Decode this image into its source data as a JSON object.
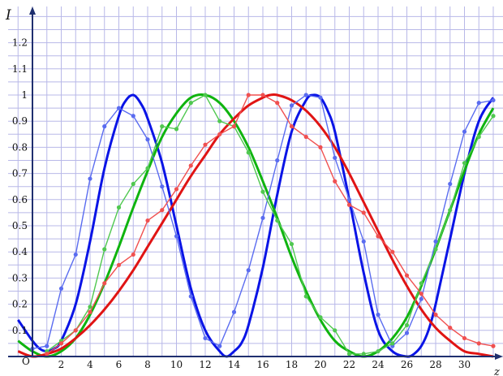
{
  "chart_data": {
    "type": "line",
    "title": "",
    "ylabel": "I",
    "xlabel": "z",
    "origin_label": "O",
    "xlim": [
      -1,
      33
    ],
    "ylim": [
      0,
      1.32
    ],
    "grid": true,
    "legend": "none",
    "grid_color": "#b8b8e8",
    "axis_color": "#1f2f6f",
    "x_ticks": [
      "2",
      "4",
      "6",
      "8",
      "10",
      "12",
      "14",
      "16",
      "18",
      "20",
      "22",
      "24",
      "26",
      "28",
      "30"
    ],
    "y_ticks": [
      "0.1",
      "0.2",
      "0.3",
      "0.4",
      "0.5",
      "0.6",
      "0.7",
      "0.8",
      "0.9",
      "1",
      "1.1",
      "1.2"
    ],
    "series": [
      {
        "color": "#0a14e6",
        "kind": "fit",
        "x": [
          -1,
          0,
          0.5,
          1,
          1.5,
          2,
          3,
          4,
          5,
          6,
          6.5,
          7,
          7.5,
          8,
          9,
          10,
          11,
          12,
          13,
          13.5,
          14,
          14.5,
          15,
          16,
          17,
          18,
          19,
          19.5,
          20,
          20.5,
          21,
          22,
          23,
          24,
          25,
          26,
          26.5,
          27,
          27.5,
          28,
          29,
          30,
          31,
          32
        ],
        "y": [
          0.14,
          0.06,
          0.03,
          0.02,
          0.03,
          0.06,
          0.2,
          0.44,
          0.72,
          0.92,
          0.98,
          1.0,
          0.97,
          0.91,
          0.74,
          0.5,
          0.26,
          0.1,
          0.02,
          0.0,
          0.02,
          0.05,
          0.12,
          0.34,
          0.62,
          0.86,
          0.98,
          1.0,
          0.99,
          0.94,
          0.86,
          0.6,
          0.32,
          0.1,
          0.02,
          0.0,
          0.01,
          0.04,
          0.1,
          0.2,
          0.45,
          0.7,
          0.9,
          0.99
        ]
      },
      {
        "color": "#5a6cf0",
        "kind": "measured",
        "x": [
          0,
          1,
          2,
          3,
          4,
          5,
          6,
          7,
          8,
          9,
          10,
          11,
          12,
          13,
          14,
          15,
          16,
          17,
          18,
          19,
          20,
          21,
          22,
          23,
          24,
          25,
          26,
          27,
          28,
          29,
          30,
          31,
          32
        ],
        "y": [
          0.03,
          0.04,
          0.26,
          0.39,
          0.68,
          0.88,
          0.95,
          0.92,
          0.83,
          0.65,
          0.46,
          0.23,
          0.07,
          0.04,
          0.17,
          0.33,
          0.53,
          0.75,
          0.96,
          1.0,
          0.99,
          0.76,
          0.6,
          0.44,
          0.16,
          0.04,
          0.09,
          0.22,
          0.44,
          0.66,
          0.86,
          0.97,
          0.98
        ]
      },
      {
        "color": "#0fb40f",
        "kind": "fit",
        "x": [
          -1,
          0,
          1,
          2,
          3,
          4,
          5,
          6,
          7,
          8,
          9,
          10,
          11,
          12,
          13,
          14,
          15,
          16,
          17,
          18,
          19,
          20,
          21,
          22,
          23,
          24,
          25,
          26,
          27,
          28,
          29,
          30,
          31,
          32
        ],
        "y": [
          0.06,
          0.02,
          0.0,
          0.02,
          0.07,
          0.16,
          0.28,
          0.42,
          0.57,
          0.71,
          0.84,
          0.93,
          0.99,
          1.0,
          0.97,
          0.9,
          0.8,
          0.67,
          0.53,
          0.38,
          0.25,
          0.14,
          0.06,
          0.02,
          0.0,
          0.02,
          0.07,
          0.15,
          0.27,
          0.41,
          0.56,
          0.71,
          0.85,
          0.95
        ]
      },
      {
        "color": "#50c850",
        "kind": "measured",
        "x": [
          1,
          2,
          3,
          4,
          5,
          6,
          7,
          8,
          9,
          10,
          11,
          12,
          13,
          14,
          15,
          16,
          17,
          18,
          19,
          20,
          21,
          22,
          23,
          24,
          25,
          26,
          27,
          28,
          29,
          30,
          31,
          32
        ],
        "y": [
          0.02,
          0.06,
          0.1,
          0.19,
          0.41,
          0.57,
          0.66,
          0.72,
          0.88,
          0.87,
          0.97,
          1.0,
          0.9,
          0.88,
          0.78,
          0.63,
          0.52,
          0.43,
          0.23,
          0.15,
          0.1,
          0.01,
          0.01,
          0.02,
          0.05,
          0.12,
          0.28,
          0.41,
          0.56,
          0.74,
          0.84,
          0.92
        ]
      },
      {
        "color": "#e01414",
        "kind": "fit",
        "x": [
          -1,
          0,
          1,
          2,
          3,
          4,
          5,
          6,
          7,
          8,
          9,
          10,
          11,
          12,
          13,
          14,
          15,
          16,
          16.5,
          17,
          18,
          19,
          20,
          21,
          22,
          23,
          24,
          25,
          26,
          27,
          28,
          29,
          30,
          31,
          32
        ],
        "y": [
          0.02,
          0.0,
          0.01,
          0.03,
          0.07,
          0.12,
          0.18,
          0.25,
          0.33,
          0.42,
          0.51,
          0.6,
          0.69,
          0.77,
          0.85,
          0.91,
          0.96,
          0.99,
          1.0,
          1.0,
          0.98,
          0.94,
          0.88,
          0.8,
          0.7,
          0.59,
          0.48,
          0.37,
          0.27,
          0.18,
          0.11,
          0.06,
          0.02,
          0.01,
          0.0
        ]
      },
      {
        "color": "#f05050",
        "kind": "measured",
        "x": [
          1,
          2,
          3,
          4,
          5,
          6,
          7,
          8,
          9,
          10,
          11,
          12,
          13,
          14,
          15,
          16,
          17,
          18,
          19,
          20,
          21,
          22,
          23,
          24,
          25,
          26,
          27,
          28,
          29,
          30,
          31,
          32
        ],
        "y": [
          0.01,
          0.05,
          0.1,
          0.17,
          0.28,
          0.35,
          0.39,
          0.52,
          0.56,
          0.64,
          0.73,
          0.81,
          0.85,
          0.88,
          1.0,
          1.0,
          0.97,
          0.88,
          0.84,
          0.8,
          0.67,
          0.58,
          0.55,
          0.46,
          0.4,
          0.31,
          0.24,
          0.16,
          0.11,
          0.07,
          0.05,
          0.04
        ]
      }
    ]
  }
}
